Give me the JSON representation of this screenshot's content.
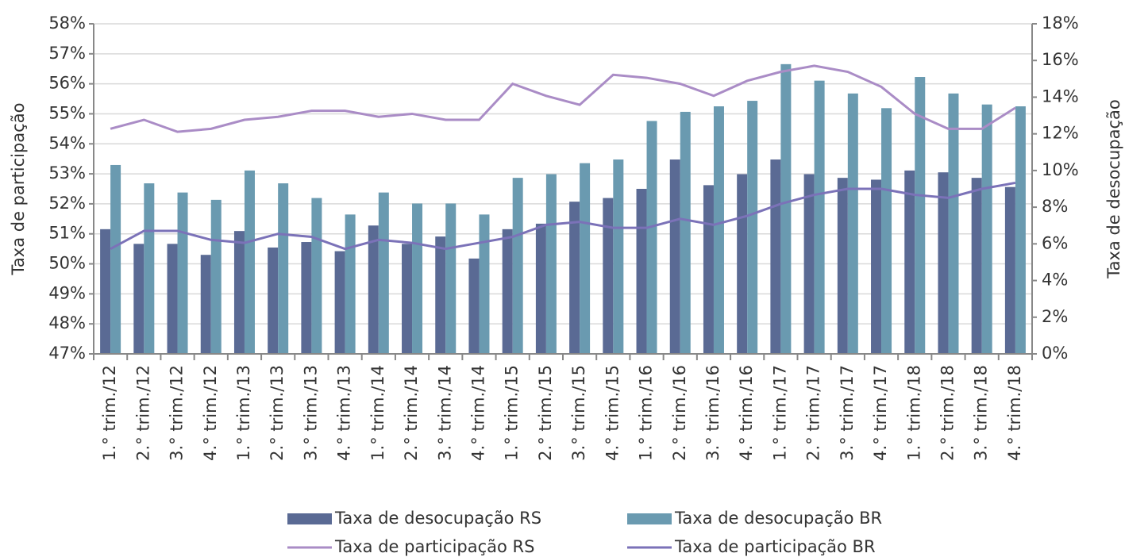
{
  "chart_data": {
    "type": "bar-line",
    "y_label": "Taxa de participação",
    "y2_label": "Taxa de desocupação",
    "categories": [
      "1.° trim./12",
      "2.° trim./12",
      "3.° trim./12",
      "4.° trim./12",
      "1.° trim./13",
      "2.° trim./13",
      "3.° trim./13",
      "4.° trim./13",
      "1.° trim./14",
      "2.° trim./14",
      "3.° trim./14",
      "4.° trim./14",
      "1.° trim./15",
      "2.° trim./15",
      "3.° trim./15",
      "4.° trim./15",
      "1.° trim./16",
      "2.° trim./16",
      "3.° trim./16",
      "4.° trim./16",
      "1.° trim./17",
      "2.° trim./17",
      "3.° trim./17",
      "4.° trim./17",
      "1.° trim./18",
      "2.° trim./18",
      "3.° trim./18",
      "4.° trim./18"
    ],
    "series": [
      {
        "name": "Taxa de desocupação RS",
        "type": "bar",
        "axis": "y2",
        "color": "#5a6a94",
        "values": [
          6.8,
          6.0,
          6.0,
          5.4,
          6.7,
          5.8,
          6.1,
          5.6,
          7.0,
          6.0,
          6.4,
          5.2,
          6.8,
          7.1,
          8.3,
          8.5,
          9.0,
          10.6,
          9.2,
          9.8,
          10.6,
          9.8,
          9.6,
          9.5,
          10.0,
          9.9,
          9.6,
          9.1
        ]
      },
      {
        "name": "Taxa de desocupação BR",
        "type": "bar",
        "axis": "y2",
        "color": "#6a9ab0",
        "values": [
          10.3,
          9.3,
          8.8,
          8.4,
          10.0,
          9.3,
          8.5,
          7.6,
          8.8,
          8.2,
          8.2,
          7.6,
          9.6,
          9.8,
          10.4,
          10.6,
          12.7,
          13.2,
          13.5,
          13.8,
          15.8,
          14.9,
          14.2,
          13.4,
          15.1,
          14.2,
          13.6,
          13.5
        ]
      },
      {
        "name": "Taxa de participação RS",
        "type": "line",
        "color": "#aa8cc6",
        "values": [
          54.5,
          54.8,
          54.4,
          54.5,
          54.8,
          54.9,
          55.1,
          55.1,
          54.9,
          55.0,
          54.8,
          54.8,
          56.0,
          55.6,
          55.3,
          56.3,
          56.2,
          56.0,
          55.6,
          56.1,
          56.4,
          56.6,
          56.4,
          55.9,
          55.0,
          54.5,
          54.5,
          55.2
        ]
      },
      {
        "name": "Taxa de participação BR",
        "type": "line",
        "color": "#7b72b8",
        "values": [
          50.5,
          51.1,
          51.1,
          50.8,
          50.7,
          51.0,
          50.9,
          50.5,
          50.8,
          50.7,
          50.5,
          50.7,
          50.9,
          51.3,
          51.4,
          51.2,
          51.2,
          51.5,
          51.3,
          51.6,
          52.0,
          52.3,
          52.5,
          52.5,
          52.3,
          52.2,
          52.5,
          52.7
        ]
      }
    ],
    "ylim": [
      47,
      58
    ],
    "yticks": [
      {
        "value": 47,
        "label": "47%"
      },
      {
        "value": 48,
        "label": "48%"
      },
      {
        "value": 49,
        "label": "49%"
      },
      {
        "value": 50,
        "label": "50%"
      },
      {
        "value": 51,
        "label": "51%"
      },
      {
        "value": 52,
        "label": "52%"
      },
      {
        "value": 53,
        "label": "53%"
      },
      {
        "value": 54,
        "label": "54%"
      },
      {
        "value": 55,
        "label": "55%"
      },
      {
        "value": 56,
        "label": "56%"
      },
      {
        "value": 57,
        "label": "57%"
      },
      {
        "value": 58,
        "label": "58%"
      }
    ],
    "y2lim": [
      0,
      18
    ],
    "y2ticks": [
      {
        "value": 0,
        "label": "0%"
      },
      {
        "value": 2,
        "label": "2%"
      },
      {
        "value": 4,
        "label": "4%"
      },
      {
        "value": 6,
        "label": "6%"
      },
      {
        "value": 8,
        "label": "8%"
      },
      {
        "value": 10,
        "label": "10%"
      },
      {
        "value": 12,
        "label": "12%"
      },
      {
        "value": 14,
        "label": "14%"
      },
      {
        "value": 16,
        "label": "16%"
      },
      {
        "value": 18,
        "label": "18%"
      }
    ],
    "grid": true,
    "legend": "bottom"
  }
}
